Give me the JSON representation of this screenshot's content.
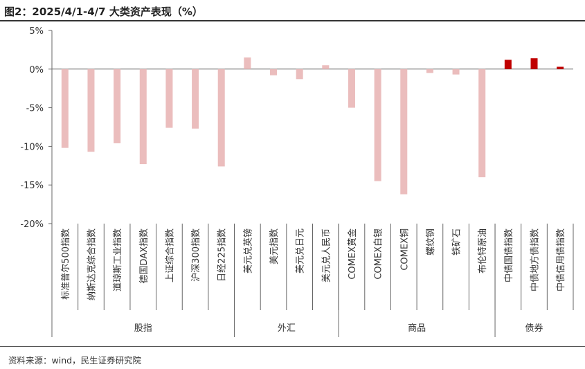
{
  "title": "图2：2025/4/1-4/7 大类资产表现（%）",
  "source": "资料来源：wind，民生证券研究院",
  "chart_data": {
    "type": "bar",
    "title": "图2：2025/4/1-4/7 大类资产表现（%）",
    "xlabel": "",
    "ylabel": "",
    "ylim": [
      -20,
      5
    ],
    "yticks": [
      5,
      0,
      -5,
      -10,
      -15,
      -20
    ],
    "ytick_labels": [
      "5%",
      "0%",
      "-5%",
      "-10%",
      "-15%",
      "-20%"
    ],
    "grid": false,
    "legend": "none",
    "categories": [
      "标准普尔500指数",
      "纳斯达克综合指数",
      "道琼斯工业指数",
      "德国DAX指数",
      "上证综合指数",
      "沪深300指数",
      "日经225指数",
      "美元兑英镑",
      "美元指数",
      "美元兑日元",
      "美元兑人民币",
      "COMEX黄金",
      "COMEX白银",
      "COMEX铜",
      "螺纹钢",
      "铁矿石",
      "布伦特原油",
      "中债国债指数",
      "中债地方债指数",
      "中债信用债指数"
    ],
    "values": [
      -10.2,
      -10.7,
      -9.6,
      -12.3,
      -7.6,
      -7.7,
      -12.6,
      1.5,
      -0.8,
      -1.3,
      0.5,
      -5.0,
      -14.5,
      -16.2,
      -0.5,
      -0.7,
      -14.0,
      1.2,
      1.4,
      0.3
    ],
    "groups": [
      {
        "name": "股指",
        "count": 7
      },
      {
        "name": "外汇",
        "count": 4
      },
      {
        "name": "商品",
        "count": 6
      },
      {
        "name": "债券",
        "count": 3
      }
    ],
    "colors": {
      "default": "#EBBDBD",
      "highlight": "#C00000",
      "axis": "#666666"
    },
    "highlight_group": "债券"
  }
}
